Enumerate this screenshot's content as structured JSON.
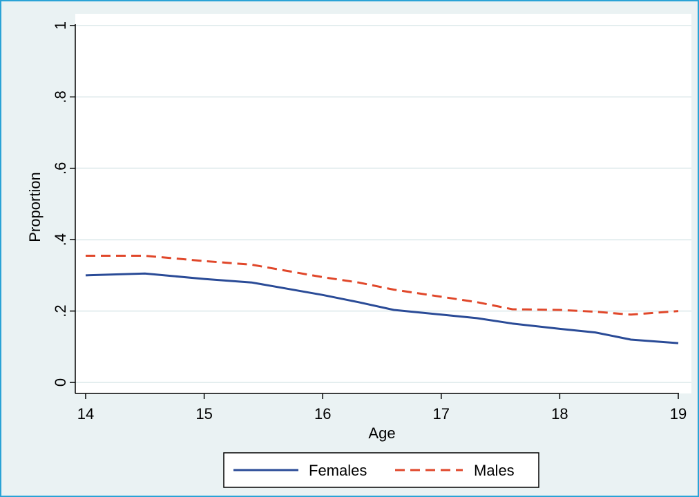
{
  "chart_data": {
    "type": "line",
    "xlabel": "Age",
    "ylabel": "Proportion",
    "xlim": [
      14,
      19
    ],
    "ylim": [
      0,
      1
    ],
    "x_ticks": [
      14,
      15,
      16,
      17,
      18,
      19
    ],
    "x_tick_labels": [
      "14",
      "15",
      "16",
      "17",
      "18",
      "19"
    ],
    "y_ticks": [
      0,
      0.2,
      0.4,
      0.6,
      0.8,
      1
    ],
    "y_tick_labels": [
      "0",
      ".2",
      ".4",
      ".6",
      ".8",
      "1"
    ],
    "grid": true,
    "legend_position": "bottom",
    "colors": {
      "outer_background": "#eaf2f3",
      "frame": "#2aa3d6",
      "plot_background": "#ffffff",
      "grid": "#e4eeef",
      "females": "#2a4b97",
      "males": "#e0472a"
    },
    "series": [
      {
        "name": "Females",
        "style": "solid",
        "x": [
          14,
          14.5,
          15,
          15.4,
          16,
          16.3,
          16.6,
          17,
          17.3,
          17.6,
          18,
          18.3,
          18.6,
          19
        ],
        "y": [
          0.3,
          0.305,
          0.29,
          0.28,
          0.245,
          0.225,
          0.203,
          0.19,
          0.18,
          0.165,
          0.15,
          0.14,
          0.12,
          0.11
        ]
      },
      {
        "name": "Males",
        "style": "dashed",
        "x": [
          14,
          14.5,
          15,
          15.4,
          16,
          16.3,
          16.6,
          17,
          17.3,
          17.6,
          18,
          18.3,
          18.6,
          19
        ],
        "y": [
          0.355,
          0.355,
          0.34,
          0.33,
          0.295,
          0.28,
          0.26,
          0.24,
          0.225,
          0.205,
          0.203,
          0.198,
          0.19,
          0.2
        ]
      }
    ]
  }
}
